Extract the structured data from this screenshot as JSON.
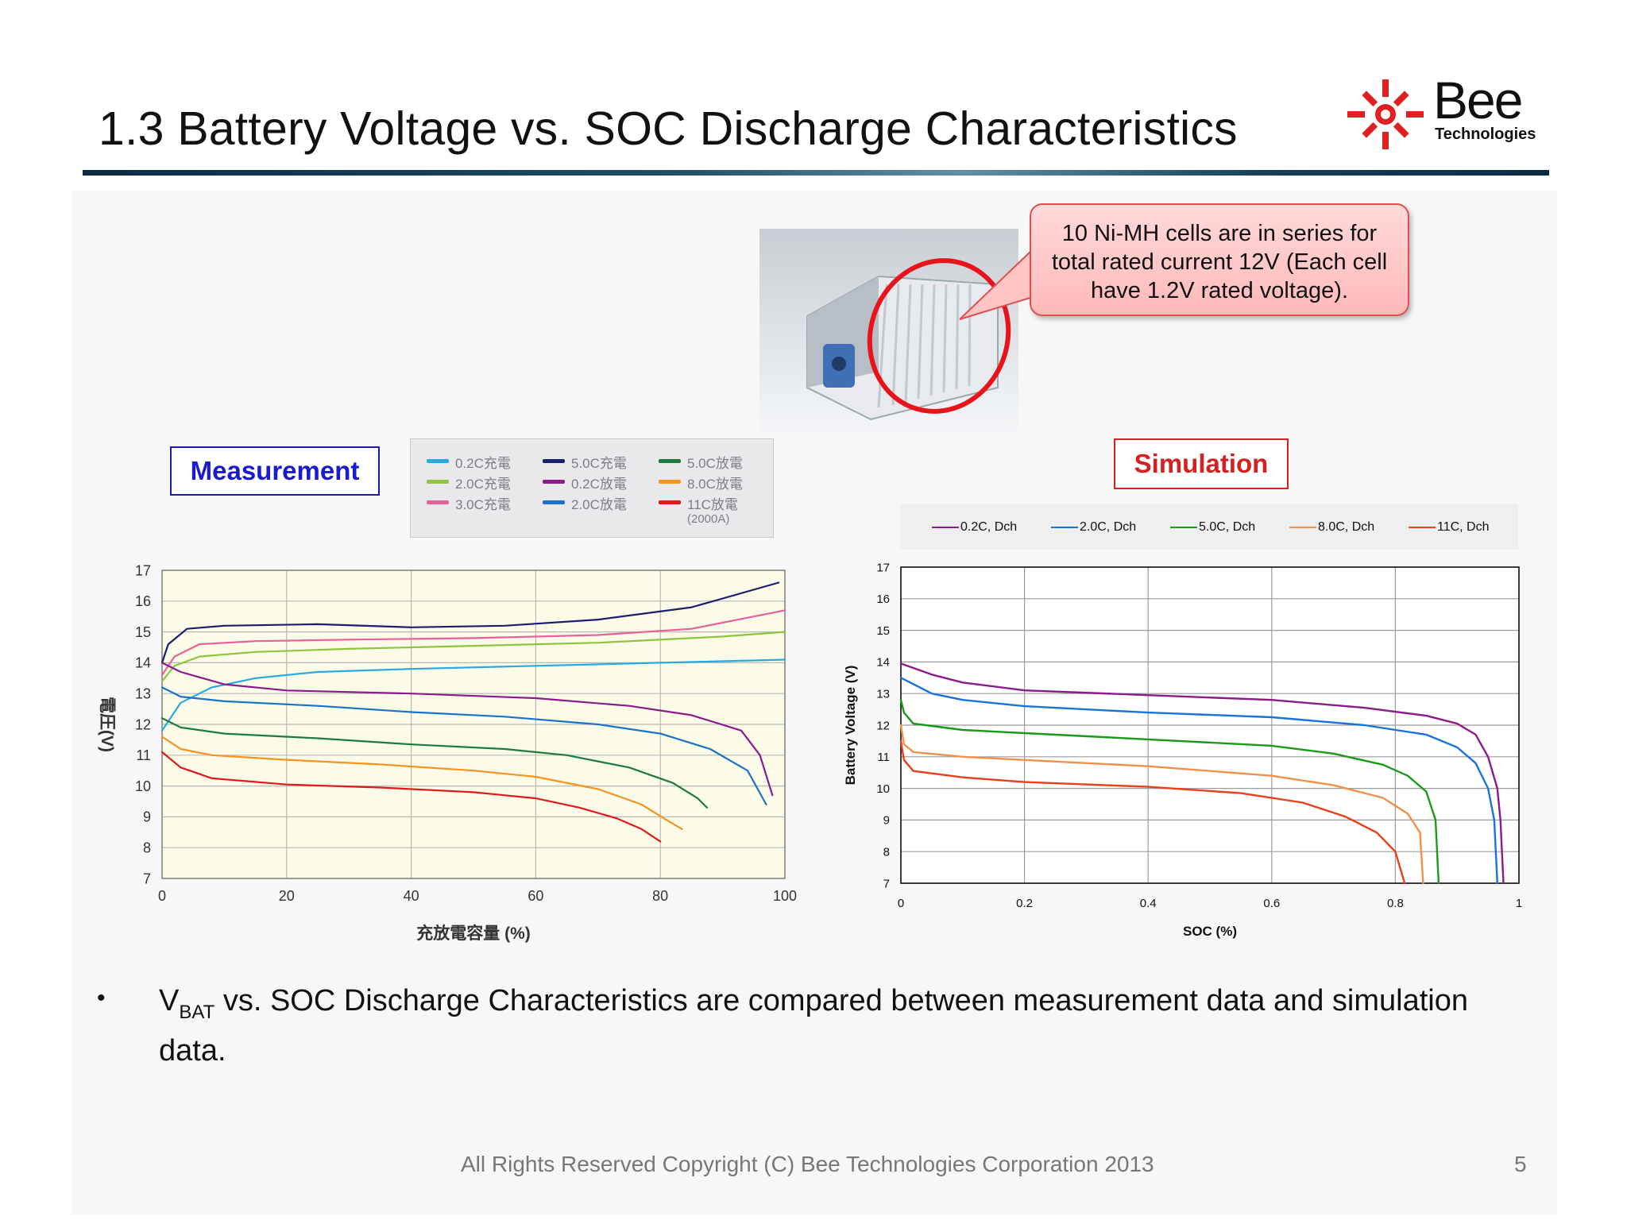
{
  "slide": {
    "title": "1.3 Battery Voltage vs. SOC Discharge Characteristics",
    "logo_word": "Bee",
    "logo_sub": "Technologies",
    "callout": "10 Ni-MH cells are in series for total rated current 12V (Each cell have 1.2V rated voltage).",
    "measurement_label": "Measurement",
    "simulation_label": "Simulation",
    "bullet_symbol": "•",
    "bullet_v": "V",
    "bullet_sub": "BAT",
    "bullet_rest": " vs. SOC Discharge Characteristics are compared between measurement data and simulation data.",
    "footer": "All Rights Reserved Copyright (C) Bee Technologies Corporation 2013",
    "page_number": "5",
    "colors": {
      "accent_red": "#d42020",
      "accent_blue": "#1a1ad0",
      "rule": "#0b2a44"
    }
  },
  "chart_data": [
    {
      "type": "line",
      "title": "",
      "xlabel": "充放電容量 (%)",
      "ylabel": "電圧(V)",
      "xlim": [
        0,
        100
      ],
      "ylim": [
        7,
        17
      ],
      "xticks": [
        "0",
        "20",
        "40",
        "60",
        "80",
        "100"
      ],
      "yticks": [
        "7",
        "8",
        "9",
        "10",
        "11",
        "12",
        "13",
        "14",
        "15",
        "16",
        "17"
      ],
      "grid": true,
      "legend_position": "top",
      "legend_note": "(2000A)",
      "series": [
        {
          "name": "0.2C充電",
          "color": "#29a9e0",
          "points": [
            [
              0,
              11.8
            ],
            [
              3,
              12.7
            ],
            [
              8,
              13.2
            ],
            [
              15,
              13.5
            ],
            [
              25,
              13.7
            ],
            [
              40,
              13.8
            ],
            [
              60,
              13.9
            ],
            [
              80,
              14.0
            ],
            [
              100,
              14.1
            ]
          ]
        },
        {
          "name": "2.0C充電",
          "color": "#8cc63f",
          "points": [
            [
              0,
              13.4
            ],
            [
              2,
              13.9
            ],
            [
              6,
              14.2
            ],
            [
              15,
              14.35
            ],
            [
              30,
              14.45
            ],
            [
              50,
              14.55
            ],
            [
              70,
              14.65
            ],
            [
              90,
              14.85
            ],
            [
              100,
              15.0
            ]
          ]
        },
        {
          "name": "3.0C充電",
          "color": "#e8609a",
          "points": [
            [
              0,
              13.6
            ],
            [
              2,
              14.2
            ],
            [
              6,
              14.6
            ],
            [
              15,
              14.7
            ],
            [
              30,
              14.75
            ],
            [
              50,
              14.8
            ],
            [
              70,
              14.9
            ],
            [
              85,
              15.1
            ],
            [
              100,
              15.7
            ]
          ]
        },
        {
          "name": "5.0C充電",
          "color": "#1b1e6e",
          "points": [
            [
              0,
              14.0
            ],
            [
              1,
              14.6
            ],
            [
              4,
              15.1
            ],
            [
              10,
              15.2
            ],
            [
              25,
              15.25
            ],
            [
              40,
              15.15
            ],
            [
              55,
              15.2
            ],
            [
              70,
              15.4
            ],
            [
              85,
              15.8
            ],
            [
              99,
              16.6
            ]
          ]
        },
        {
          "name": "0.2C放電",
          "color": "#8b1a8b",
          "points": [
            [
              0,
              14.0
            ],
            [
              3,
              13.7
            ],
            [
              10,
              13.3
            ],
            [
              20,
              13.1
            ],
            [
              40,
              13.0
            ],
            [
              60,
              12.85
            ],
            [
              75,
              12.6
            ],
            [
              85,
              12.3
            ],
            [
              93,
              11.8
            ],
            [
              96,
              11.0
            ],
            [
              98,
              9.7
            ]
          ]
        },
        {
          "name": "2.0C放電",
          "color": "#1a73c7",
          "points": [
            [
              0,
              13.2
            ],
            [
              3,
              12.9
            ],
            [
              10,
              12.75
            ],
            [
              25,
              12.6
            ],
            [
              40,
              12.4
            ],
            [
              55,
              12.25
            ],
            [
              70,
              12.0
            ],
            [
              80,
              11.7
            ],
            [
              88,
              11.2
            ],
            [
              94,
              10.5
            ],
            [
              97,
              9.4
            ]
          ]
        },
        {
          "name": "5.0C放電",
          "color": "#1d7a3e",
          "points": [
            [
              0,
              12.2
            ],
            [
              3,
              11.9
            ],
            [
              10,
              11.7
            ],
            [
              25,
              11.55
            ],
            [
              40,
              11.35
            ],
            [
              55,
              11.2
            ],
            [
              65,
              11.0
            ],
            [
              75,
              10.6
            ],
            [
              82,
              10.1
            ],
            [
              86,
              9.6
            ],
            [
              87.5,
              9.3
            ]
          ]
        },
        {
          "name": "8.0C放電",
          "color": "#f7931e",
          "points": [
            [
              0,
              11.6
            ],
            [
              3,
              11.2
            ],
            [
              8,
              11.0
            ],
            [
              20,
              10.85
            ],
            [
              35,
              10.7
            ],
            [
              50,
              10.5
            ],
            [
              60,
              10.3
            ],
            [
              70,
              9.9
            ],
            [
              77,
              9.4
            ],
            [
              81,
              8.9
            ],
            [
              83.5,
              8.6
            ]
          ]
        },
        {
          "name": "11C放電",
          "color": "#e01a1a",
          "points": [
            [
              0,
              11.1
            ],
            [
              3,
              10.6
            ],
            [
              8,
              10.25
            ],
            [
              20,
              10.05
            ],
            [
              35,
              9.95
            ],
            [
              50,
              9.8
            ],
            [
              60,
              9.6
            ],
            [
              67,
              9.3
            ],
            [
              73,
              8.95
            ],
            [
              77,
              8.6
            ],
            [
              80,
              8.2
            ]
          ]
        }
      ]
    },
    {
      "type": "line",
      "title": "",
      "xlabel": "SOC (%)",
      "ylabel": "Battery Voltage (V)",
      "xlim": [
        0,
        1
      ],
      "ylim": [
        7,
        17
      ],
      "xticks": [
        "0",
        "0.2",
        "0.4",
        "0.6",
        "0.8",
        "1"
      ],
      "yticks": [
        "7",
        "8",
        "9",
        "10",
        "11",
        "12",
        "13",
        "14",
        "15",
        "16",
        "17"
      ],
      "grid": true,
      "legend_position": "top",
      "series": [
        {
          "name": "0.2C, Dch",
          "color": "#8b1a8b",
          "points": [
            [
              0,
              13.95
            ],
            [
              0.05,
              13.6
            ],
            [
              0.1,
              13.35
            ],
            [
              0.2,
              13.1
            ],
            [
              0.4,
              12.95
            ],
            [
              0.6,
              12.8
            ],
            [
              0.75,
              12.55
            ],
            [
              0.85,
              12.3
            ],
            [
              0.9,
              12.05
            ],
            [
              0.93,
              11.7
            ],
            [
              0.95,
              11.0
            ],
            [
              0.965,
              10.0
            ],
            [
              0.97,
              9.0
            ],
            [
              0.975,
              7.0
            ]
          ]
        },
        {
          "name": "2.0C, Dch",
          "color": "#1a73d9",
          "points": [
            [
              0,
              13.5
            ],
            [
              0.05,
              13.0
            ],
            [
              0.1,
              12.8
            ],
            [
              0.2,
              12.6
            ],
            [
              0.4,
              12.4
            ],
            [
              0.6,
              12.25
            ],
            [
              0.75,
              12.0
            ],
            [
              0.85,
              11.7
            ],
            [
              0.9,
              11.3
            ],
            [
              0.93,
              10.8
            ],
            [
              0.95,
              10.0
            ],
            [
              0.96,
              9.0
            ],
            [
              0.965,
              7.0
            ]
          ]
        },
        {
          "name": "5.0C, Dch",
          "color": "#1a9a1a",
          "points": [
            [
              0,
              12.8
            ],
            [
              0.005,
              12.4
            ],
            [
              0.02,
              12.05
            ],
            [
              0.1,
              11.85
            ],
            [
              0.2,
              11.75
            ],
            [
              0.4,
              11.55
            ],
            [
              0.6,
              11.35
            ],
            [
              0.7,
              11.1
            ],
            [
              0.78,
              10.75
            ],
            [
              0.82,
              10.4
            ],
            [
              0.85,
              9.9
            ],
            [
              0.865,
              9.0
            ],
            [
              0.87,
              7.0
            ]
          ]
        },
        {
          "name": "8.0C, Dch",
          "color": "#f0904a",
          "points": [
            [
              0,
              12.0
            ],
            [
              0.005,
              11.4
            ],
            [
              0.02,
              11.15
            ],
            [
              0.1,
              11.0
            ],
            [
              0.2,
              10.9
            ],
            [
              0.4,
              10.7
            ],
            [
              0.6,
              10.4
            ],
            [
              0.7,
              10.1
            ],
            [
              0.78,
              9.7
            ],
            [
              0.82,
              9.2
            ],
            [
              0.84,
              8.6
            ],
            [
              0.845,
              7.0
            ]
          ]
        },
        {
          "name": "11C, Dch",
          "color": "#e8401a",
          "points": [
            [
              0,
              11.5
            ],
            [
              0.005,
              10.9
            ],
            [
              0.02,
              10.55
            ],
            [
              0.1,
              10.35
            ],
            [
              0.2,
              10.2
            ],
            [
              0.4,
              10.05
            ],
            [
              0.55,
              9.85
            ],
            [
              0.65,
              9.55
            ],
            [
              0.72,
              9.1
            ],
            [
              0.77,
              8.6
            ],
            [
              0.8,
              8.0
            ],
            [
              0.815,
              7.0
            ]
          ]
        }
      ]
    }
  ]
}
